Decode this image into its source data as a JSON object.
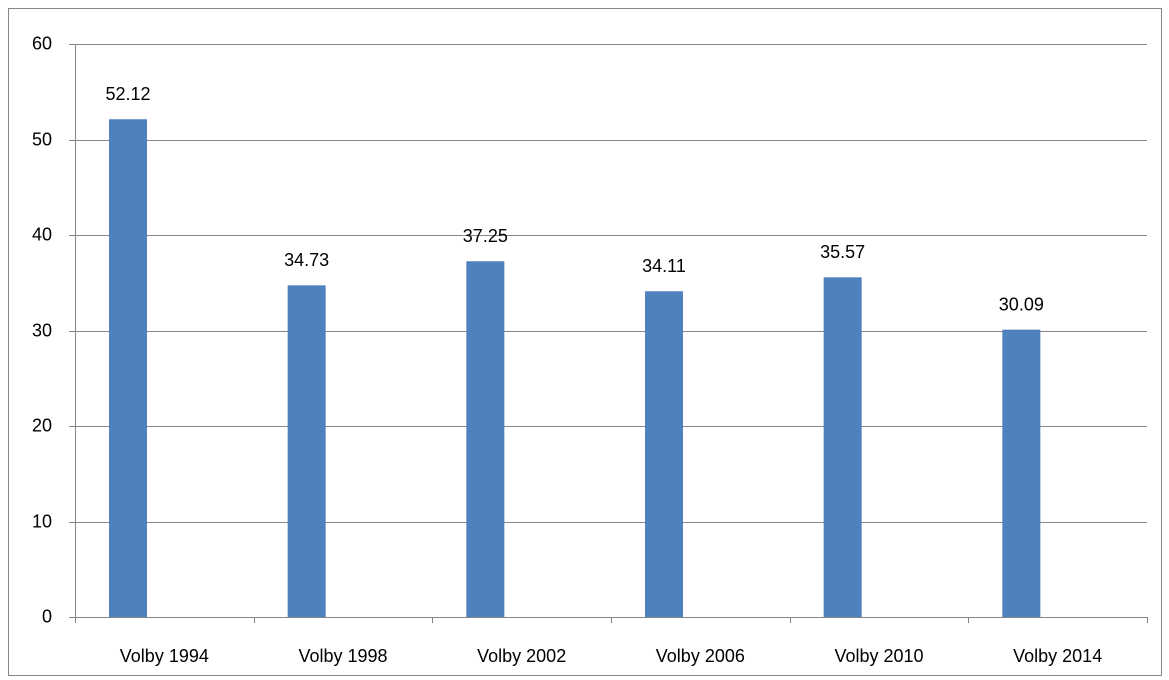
{
  "chart_data": {
    "type": "bar",
    "categories": [
      "Volby 1994",
      "Volby 1998",
      "Volby 2002",
      "Volby 2006",
      "Volby 2010",
      "Volby 2014"
    ],
    "values": [
      52.12,
      34.73,
      37.25,
      34.11,
      35.57,
      30.09
    ],
    "color": "#4f81bd",
    "ylim": [
      0,
      60
    ],
    "yticks": [
      0,
      10,
      20,
      30,
      40,
      50,
      60
    ],
    "grid": true
  }
}
